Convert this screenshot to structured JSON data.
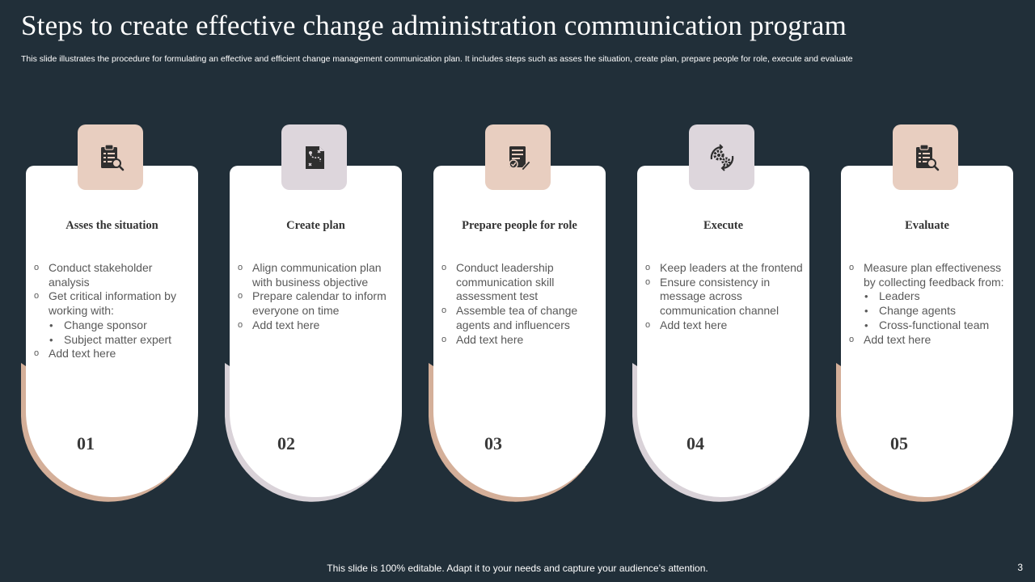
{
  "slide": {
    "title": "Steps to create effective change administration communication program",
    "subtitle": "This slide illustrates the procedure for formulating an effective and efficient change management communication plan. It includes steps such as asses the situation, create plan, prepare people for role, execute and evaluate",
    "footer": "This slide is 100% editable. Adapt it to your needs and capture your audience’s attention.",
    "page_number": "3"
  },
  "colors": {
    "background": "#212f39",
    "accent_tan": "#d4af99",
    "accent_lilac": "#d9d2d8",
    "icon_tan_bg": "#e8cec0",
    "icon_lilac_bg": "#ddd6dc",
    "icon_fill": "#2f2f2f"
  },
  "steps": [
    {
      "number": "01",
      "title": "Asses the situation",
      "icon": "clipboard-search-icon",
      "accent": "tan",
      "bullets": [
        {
          "text": "Conduct stakeholder analysis",
          "level": 1
        },
        {
          "text": "Get critical information by working with:",
          "level": 1
        },
        {
          "text": "Change sponsor",
          "level": 2
        },
        {
          "text": "Subject matter expert",
          "level": 2
        },
        {
          "text": "Add text here",
          "level": 1
        }
      ]
    },
    {
      "number": "02",
      "title": "Create plan",
      "icon": "plan-document-icon",
      "accent": "lilac",
      "bullets": [
        {
          "text": "Align communication plan with business objective",
          "level": 1
        },
        {
          "text": "Prepare calendar to inform everyone on time",
          "level": 1
        },
        {
          "text": "Add text here",
          "level": 1
        }
      ]
    },
    {
      "number": "03",
      "title": "Prepare people for role",
      "icon": "checklist-pen-icon",
      "accent": "tan",
      "bullets": [
        {
          "text": "Conduct leadership communication skill assessment test",
          "level": 1
        },
        {
          "text": "Assemble tea of change agents and influencers",
          "level": 1
        },
        {
          "text": "Add text here",
          "level": 1
        }
      ]
    },
    {
      "number": "04",
      "title": "Execute",
      "icon": "gears-cycle-icon",
      "accent": "lilac",
      "bullets": [
        {
          "text": "Keep leaders at the frontend",
          "level": 1
        },
        {
          "text": "Ensure consistency in message across communication channel",
          "level": 1
        },
        {
          "text": "Add text here",
          "level": 1
        }
      ]
    },
    {
      "number": "05",
      "title": "Evaluate",
      "icon": "clipboard-search-icon",
      "accent": "tan",
      "bullets": [
        {
          "text": "Measure plan effectiveness by collecting feedback from:",
          "level": 1
        },
        {
          "text": "Leaders",
          "level": 2
        },
        {
          "text": "Change agents",
          "level": 2
        },
        {
          "text": "Cross-functional team",
          "level": 2
        },
        {
          "text": "Add text here",
          "level": 1
        }
      ]
    }
  ]
}
